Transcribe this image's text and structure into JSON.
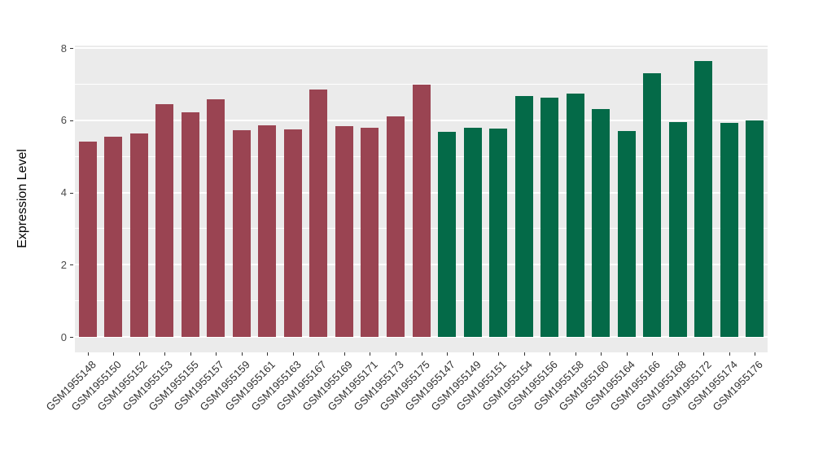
{
  "chart_data": {
    "type": "bar",
    "ylabel": "Expression Level",
    "xlabel": "",
    "ylim": [
      0,
      8
    ],
    "yticks": [
      0,
      2,
      4,
      6,
      8
    ],
    "minor_yticks": [
      1,
      3,
      5,
      7
    ],
    "grid": "on",
    "legend": "none",
    "panel_bg": "#EBEBEB",
    "grid_color": "#FFFFFF",
    "group1_color": "#9A4452",
    "group2_color": "#046A48",
    "group1_count": 14,
    "categories": [
      "GSM1955148",
      "GSM1955150",
      "GSM1955152",
      "GSM1955153",
      "GSM1955155",
      "GSM1955157",
      "GSM1955159",
      "GSM1955161",
      "GSM1955163",
      "GSM1955167",
      "GSM1955169",
      "GSM1955171",
      "GSM1955173",
      "GSM1955175",
      "GSM1955147",
      "GSM1955149",
      "GSM1955151",
      "GSM1955154",
      "GSM1955156",
      "GSM1955158",
      "GSM1955160",
      "GSM1955164",
      "GSM1955166",
      "GSM1955168",
      "GSM1955172",
      "GSM1955174",
      "GSM1955176"
    ],
    "values": [
      5.4,
      5.55,
      5.63,
      6.44,
      6.21,
      6.57,
      5.72,
      5.87,
      5.75,
      6.86,
      5.83,
      5.79,
      6.11,
      6.98,
      5.69,
      5.8,
      5.78,
      6.68,
      6.63,
      6.73,
      6.31,
      5.71,
      7.3,
      5.94,
      7.65,
      5.92,
      5.99
    ]
  }
}
